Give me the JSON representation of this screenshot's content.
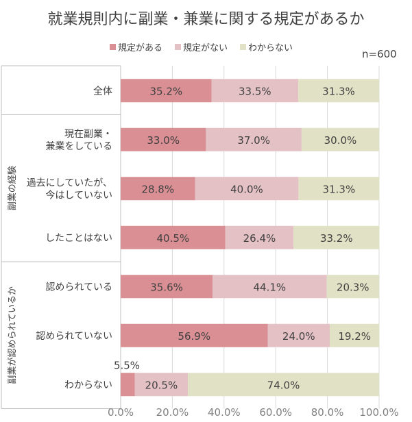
{
  "title": "就業規則内に副業・兼業に関する規定があるか",
  "n_label": "n=600",
  "colors": {
    "yes": "#d98f94",
    "no": "#e3c1c5",
    "unknown": "#e1e2c5",
    "grid": "#d9d9d9",
    "divider": "#bfbfbf",
    "text": "#404040",
    "axis_text": "#808080"
  },
  "chart_data": {
    "type": "bar",
    "orientation": "horizontal",
    "stacked": true,
    "title": "就業規則内に副業・兼業に関する規定があるか",
    "xlim": [
      0,
      100
    ],
    "x_ticks": [
      "0.0%",
      "20.0%",
      "40.0%",
      "60.0%",
      "80.0%",
      "100.0%"
    ],
    "legend_position": "top",
    "series": [
      {
        "name": "規定がある",
        "values": [
          35.2,
          33.0,
          28.8,
          40.5,
          35.6,
          56.9,
          5.5
        ]
      },
      {
        "name": "規定がない",
        "values": [
          33.5,
          37.0,
          40.0,
          26.4,
          44.1,
          24.0,
          20.5
        ]
      },
      {
        "name": "わからない",
        "values": [
          31.3,
          30.0,
          31.3,
          33.2,
          20.3,
          19.2,
          74.0
        ]
      }
    ],
    "data_labels": [
      [
        "35.2%",
        "33.5%",
        "31.3%"
      ],
      [
        "33.0%",
        "37.0%",
        "30.0%"
      ],
      [
        "28.8%",
        "40.0%",
        "31.3%"
      ],
      [
        "40.5%",
        "26.4%",
        "33.2%"
      ],
      [
        "35.6%",
        "44.1%",
        "20.3%"
      ],
      [
        "56.9%",
        "24.0%",
        "19.2%"
      ],
      [
        "5.5%",
        "20.5%",
        "74.0%"
      ]
    ],
    "categories": [
      [
        "全体"
      ],
      [
        "現在副業・",
        "兼業をしている"
      ],
      [
        "過去にしていたが、",
        "今はしていない"
      ],
      [
        "したことはない"
      ],
      [
        "認められている"
      ],
      [
        "認められていない"
      ],
      [
        "わからない"
      ]
    ],
    "groups": [
      {
        "label": "副業の経験"
      },
      {
        "label": "副業が認められているか"
      }
    ]
  }
}
